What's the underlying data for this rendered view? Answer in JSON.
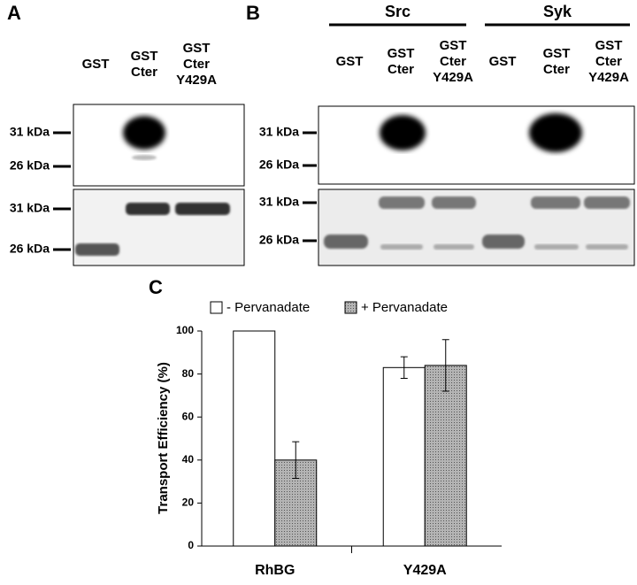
{
  "panels": {
    "A": {
      "label": "A",
      "lanes": [
        [
          "GST"
        ],
        [
          "GST",
          "Cter"
        ],
        [
          "GST",
          "Cter",
          "Y429A"
        ]
      ],
      "markers_top": [
        "31 kDa",
        "26 kDa"
      ],
      "markers_bottom": [
        "31 kDa",
        "26 kDa"
      ]
    },
    "B": {
      "label": "B",
      "groups": [
        "Src",
        "Syk"
      ],
      "lanes": [
        [
          "GST"
        ],
        [
          "GST",
          "Cter"
        ],
        [
          "GST",
          "Cter",
          "Y429A"
        ],
        [
          "GST"
        ],
        [
          "GST",
          "Cter"
        ],
        [
          "GST",
          "Cter",
          "Y429A"
        ]
      ],
      "markers_top": [
        "31 kDa",
        "26 kDa"
      ],
      "markers_bottom": [
        "31 kDa",
        "26 kDa"
      ]
    },
    "C": {
      "label": "C"
    }
  },
  "chart_data": {
    "type": "bar",
    "ylabel": "Transport Efficiency (%)",
    "categories": [
      "RhBG",
      "Y429A"
    ],
    "series": [
      {
        "name": "- Pervanadate",
        "color": "#ffffff",
        "values": [
          100,
          83
        ],
        "errors": [
          null,
          5
        ]
      },
      {
        "name": "+ Pervanadate",
        "color": "#a8a8a8",
        "values": [
          40,
          84
        ],
        "errors": [
          8.5,
          12
        ]
      }
    ],
    "ylim": [
      0,
      100
    ],
    "yticks": [
      0,
      20,
      40,
      60,
      80,
      100
    ]
  }
}
